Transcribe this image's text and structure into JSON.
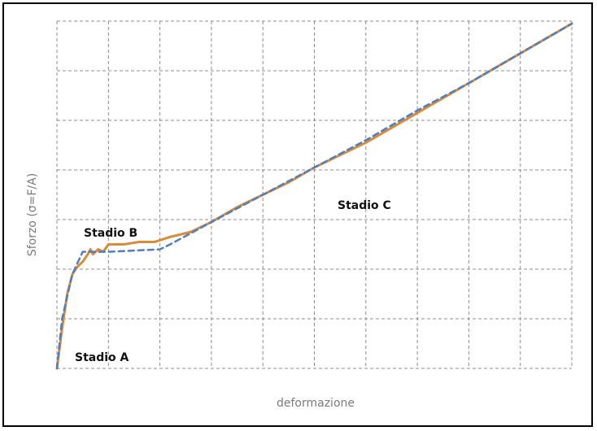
{
  "chart_data": {
    "type": "line",
    "title": "",
    "xlabel": "deformazione",
    "ylabel": "Sforzo (σ=F/A)",
    "xlim": [
      0,
      10
    ],
    "ylim": [
      0,
      7
    ],
    "grid": true,
    "grid_x_divisions": 10,
    "grid_y_divisions": 7,
    "annotations": [
      {
        "id": "stadio-a",
        "text": "Stadio A"
      },
      {
        "id": "stadio-b",
        "text": "Stadio B"
      },
      {
        "id": "stadio-c",
        "text": "Stadio C"
      }
    ],
    "series": [
      {
        "style": "solid",
        "color": "#d98b3a",
        "points": [
          [
            0,
            0
          ],
          [
            0.1,
            0.8
          ],
          [
            0.2,
            1.5
          ],
          [
            0.3,
            1.9
          ],
          [
            0.4,
            2.05
          ],
          [
            0.5,
            2.15
          ],
          [
            0.6,
            2.3
          ],
          [
            0.65,
            2.4
          ],
          [
            0.7,
            2.3
          ],
          [
            0.8,
            2.4
          ],
          [
            0.9,
            2.35
          ],
          [
            1.0,
            2.5
          ],
          [
            1.3,
            2.5
          ],
          [
            1.6,
            2.55
          ],
          [
            1.9,
            2.55
          ],
          [
            2.2,
            2.65
          ],
          [
            2.6,
            2.75
          ],
          [
            3.0,
            2.95
          ],
          [
            3.5,
            3.25
          ],
          [
            4.0,
            3.5
          ],
          [
            4.5,
            3.75
          ],
          [
            5.0,
            4.05
          ],
          [
            5.5,
            4.3
          ],
          [
            6.0,
            4.55
          ],
          [
            6.5,
            4.85
          ],
          [
            7.0,
            5.15
          ],
          [
            7.5,
            5.45
          ],
          [
            8.0,
            5.75
          ],
          [
            8.5,
            6.05
          ],
          [
            9.0,
            6.35
          ],
          [
            9.5,
            6.65
          ],
          [
            10.0,
            6.95
          ]
        ]
      },
      {
        "style": "dashed",
        "color": "#4f7fbf",
        "points": [
          [
            0,
            0
          ],
          [
            0.1,
            1.0
          ],
          [
            0.3,
            1.9
          ],
          [
            0.5,
            2.35
          ],
          [
            1.0,
            2.35
          ],
          [
            2.0,
            2.4
          ],
          [
            2.2,
            2.5
          ],
          [
            3.0,
            2.95
          ],
          [
            4.0,
            3.5
          ],
          [
            5.0,
            4.05
          ],
          [
            6.0,
            4.6
          ],
          [
            7.0,
            5.2
          ],
          [
            8.0,
            5.75
          ],
          [
            9.0,
            6.35
          ],
          [
            10.0,
            6.95
          ]
        ]
      }
    ]
  }
}
